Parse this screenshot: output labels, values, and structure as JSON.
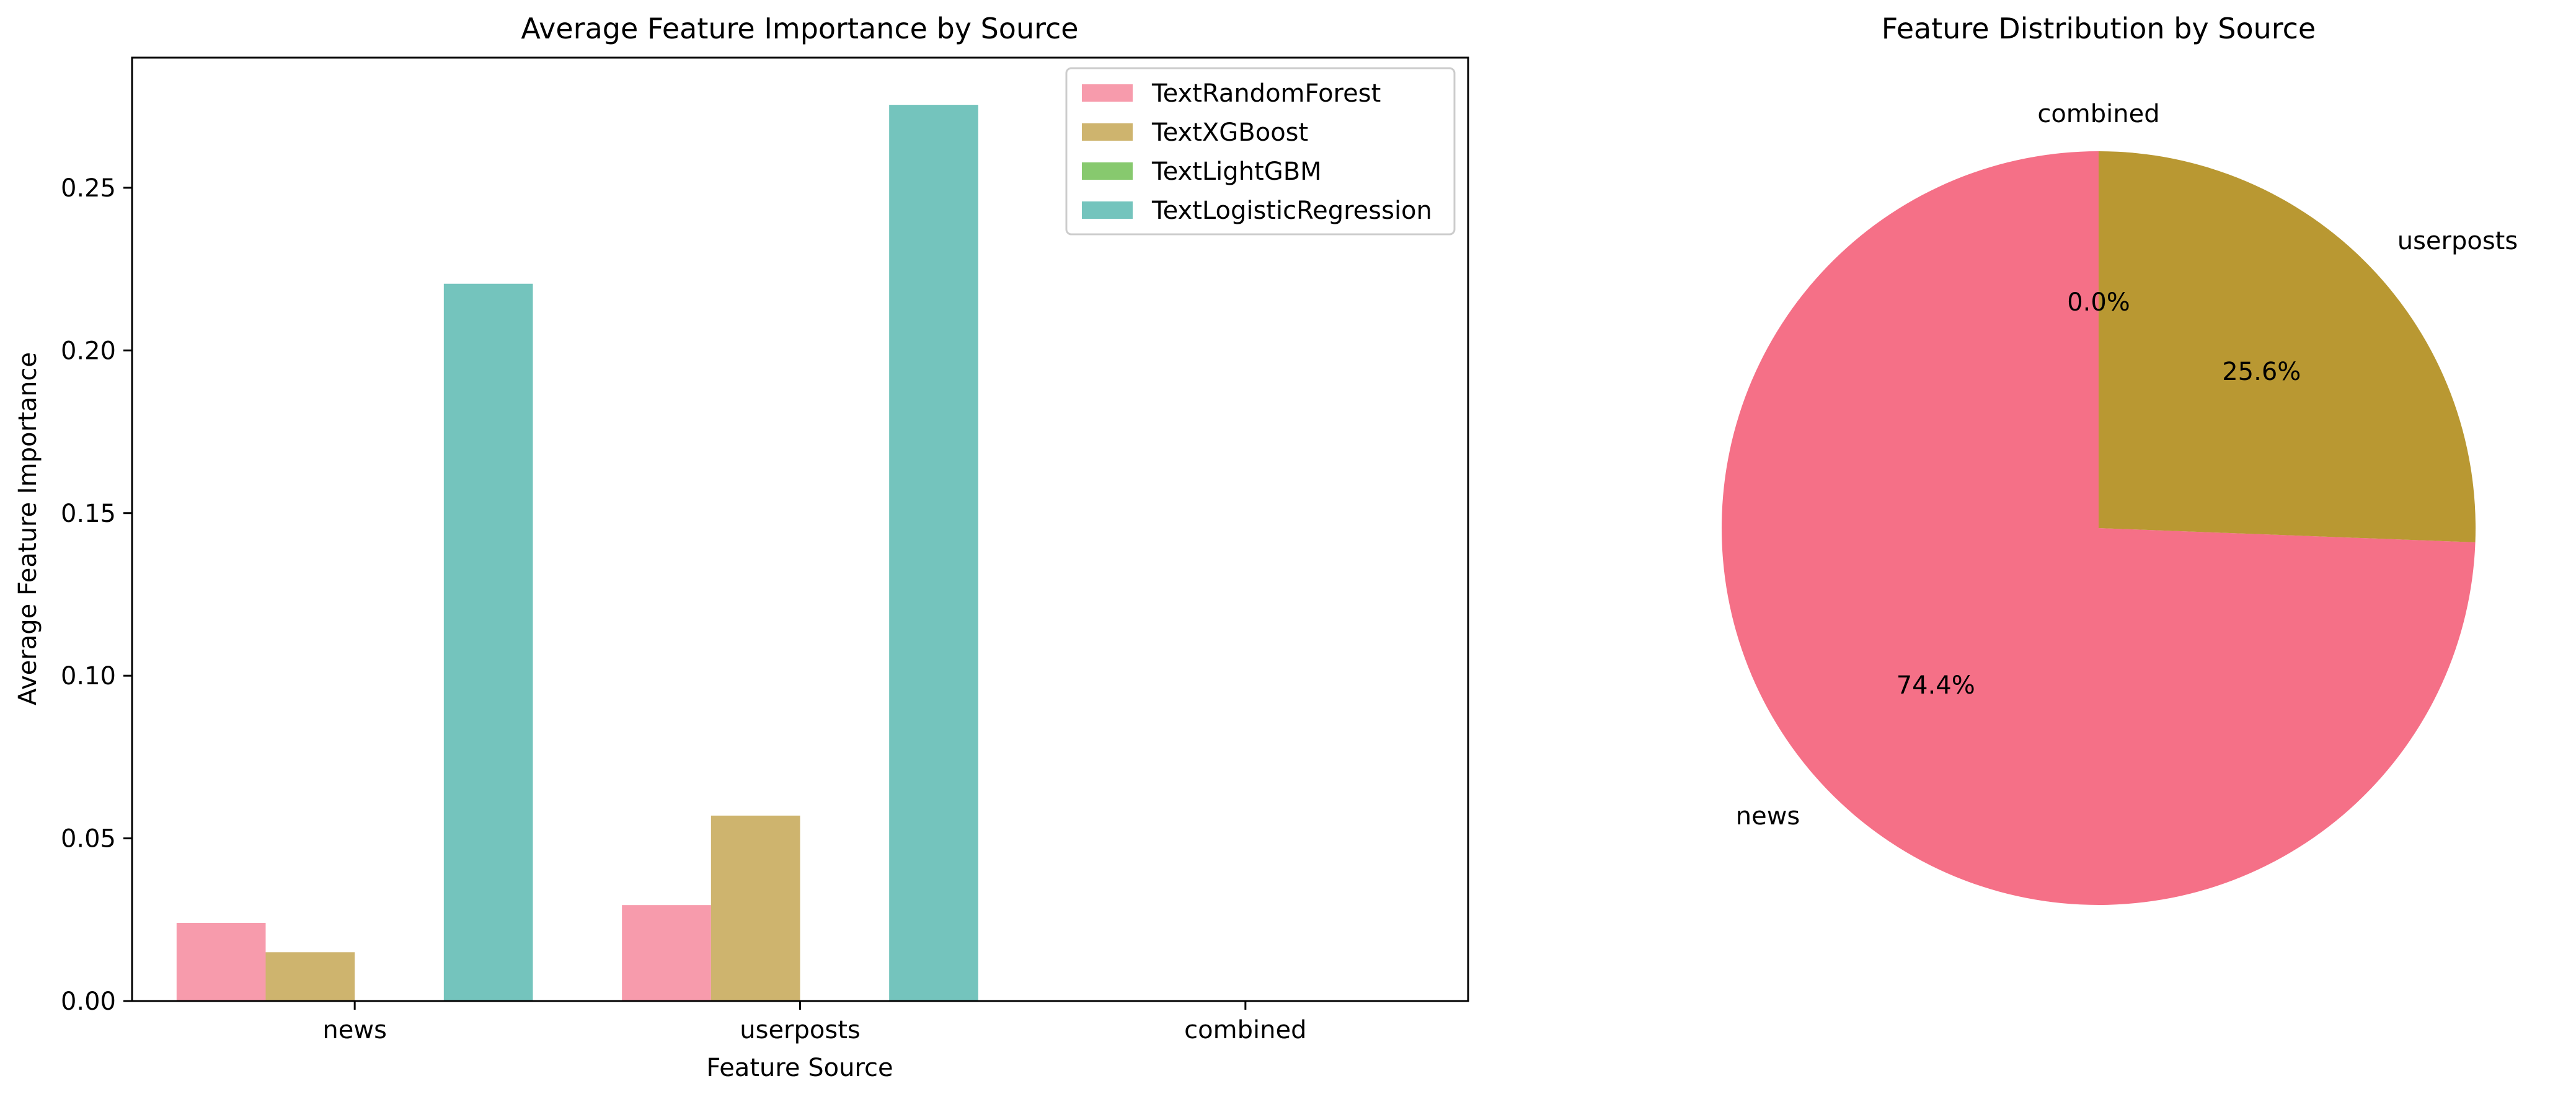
{
  "chart_data": [
    {
      "type": "bar",
      "title": "Average Feature Importance by Source",
      "xlabel": "Feature Source",
      "ylabel": "Average Feature Importance",
      "categories": [
        "news",
        "userposts",
        "combined"
      ],
      "ylim": [
        0,
        0.29
      ],
      "yticks": [
        0.0,
        0.05,
        0.1,
        0.15,
        0.2,
        0.25
      ],
      "ytick_labels": [
        "0.00",
        "0.05",
        "0.10",
        "0.15",
        "0.20",
        "0.25"
      ],
      "grid": false,
      "legend_position": "top-right",
      "series": [
        {
          "name": "TextRandomForest",
          "color": "#f79bac",
          "values": [
            0.024,
            0.0295,
            0.0
          ]
        },
        {
          "name": "TextXGBoost",
          "color": "#ceb46e",
          "values": [
            0.015,
            0.057,
            0.0
          ]
        },
        {
          "name": "TextLightGBM",
          "color": "#87c96e",
          "values": [
            0.0,
            0.0,
            0.0
          ]
        },
        {
          "name": "TextLogisticRegression",
          "color": "#74c4bd",
          "values": [
            0.2205,
            0.2755,
            0.0
          ]
        }
      ]
    },
    {
      "type": "pie",
      "title": "Feature Distribution by Source",
      "labels": [
        "news",
        "userposts",
        "combined"
      ],
      "values": [
        74.4,
        25.6,
        0.0
      ],
      "value_labels": [
        "74.4%",
        "25.6%",
        "0.0%"
      ],
      "colors": [
        "#f57087",
        "#b99832",
        "#4fb04a"
      ],
      "start_angle_deg": 90,
      "direction": "counterclockwise"
    }
  ]
}
